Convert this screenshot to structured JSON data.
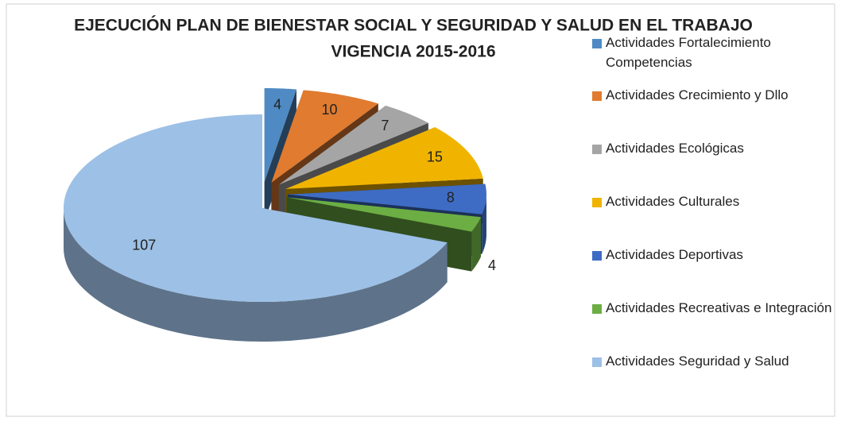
{
  "chart_data": {
    "type": "pie3d",
    "title": "EJECUCIÓN PLAN DE BIENESTAR SOCIAL Y SEGURIDAD Y SALUD EN EL TRABAJO",
    "subtitle": "VIGENCIA 2015-2016",
    "categories": [
      "Actividades Fortalecimiento Competencias",
      "Actividades Crecimiento y Dllo",
      "Actividades Ecológicas",
      "Actividades Culturales",
      "Actividades Deportivas",
      "Actividades Recreativas e Integración",
      "Actividades Seguridad y Salud"
    ],
    "values": [
      4,
      10,
      7,
      15,
      8,
      4,
      107
    ],
    "colors": [
      "#4f8ac4",
      "#e07b30",
      "#a5a5a5",
      "#f0b400",
      "#3e6cc4",
      "#6cae44",
      "#9dc0e6"
    ],
    "legend": "right"
  }
}
